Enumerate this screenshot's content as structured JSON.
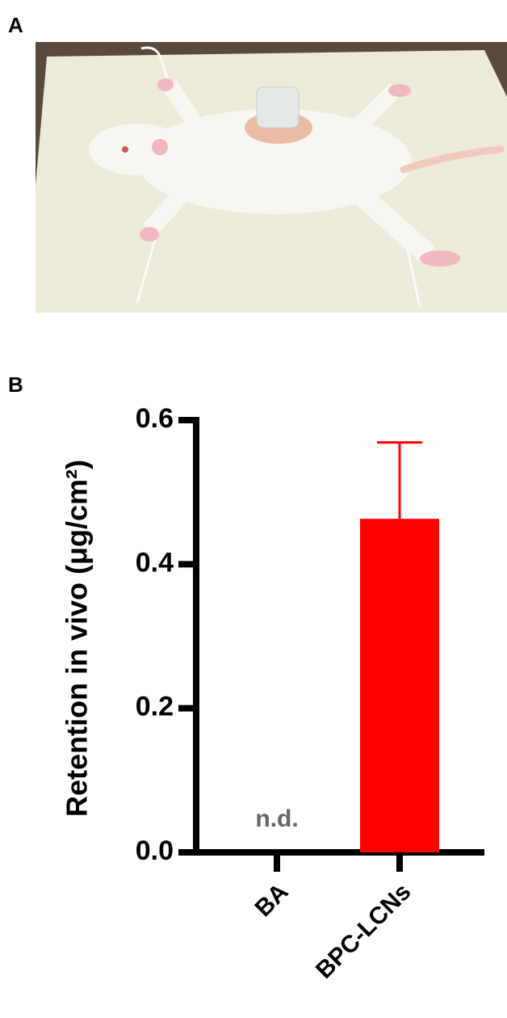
{
  "panels": [
    "A",
    "B"
  ],
  "chart_data": {
    "type": "bar",
    "y_label": "Retention in vivo (μg/cm²)",
    "categories": [
      "BA",
      "BPC-LCNs"
    ],
    "values": [
      null,
      0.463
    ],
    "errors": [
      null,
      0.106
    ],
    "value_labels": [
      "n.d.",
      null
    ],
    "color": "#ff0000",
    "ylim": [
      0,
      0.6
    ],
    "yticks": [
      {
        "value": 0,
        "label": "0.0"
      },
      0.2,
      0.4,
      0.6
    ],
    "grid": false
  }
}
